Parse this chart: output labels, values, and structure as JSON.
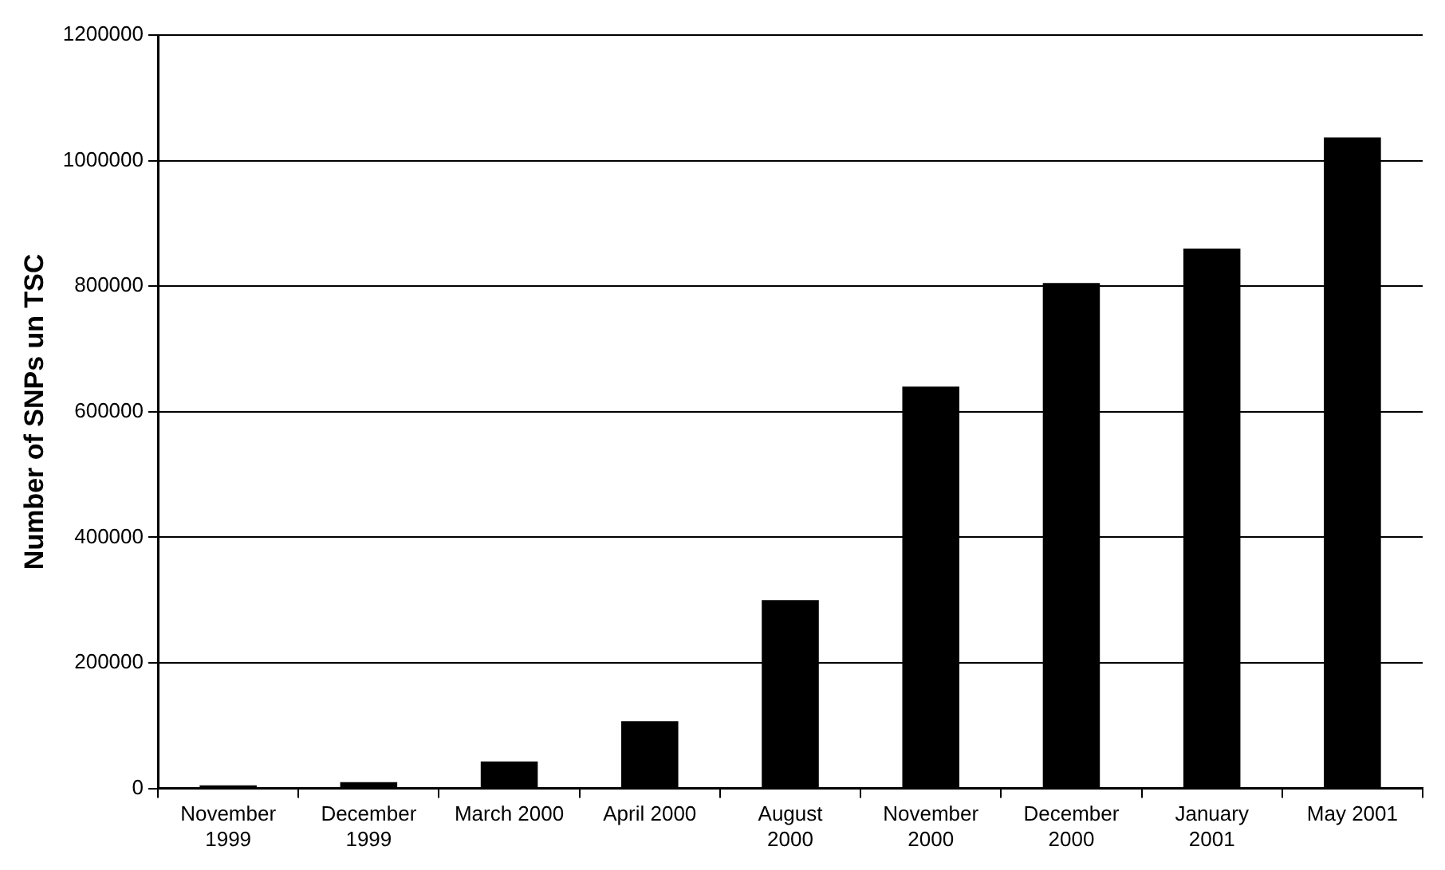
{
  "chart_data": {
    "type": "bar",
    "ylabel": "Number of SNPs un TSC",
    "categories": [
      "November 1999",
      "December 1999",
      "March 2000",
      "April 2000",
      "August 2000",
      "November 2000",
      "December 2000",
      "January 2001",
      "May 2001"
    ],
    "values": [
      5000,
      10000,
      43000,
      107000,
      300000,
      640000,
      805000,
      860000,
      1037000
    ],
    "color": "#000000",
    "ylim": [
      0,
      1200000
    ],
    "yticks": [
      0,
      200000,
      400000,
      600000,
      800000,
      1000000,
      1200000
    ],
    "grid": "y"
  }
}
